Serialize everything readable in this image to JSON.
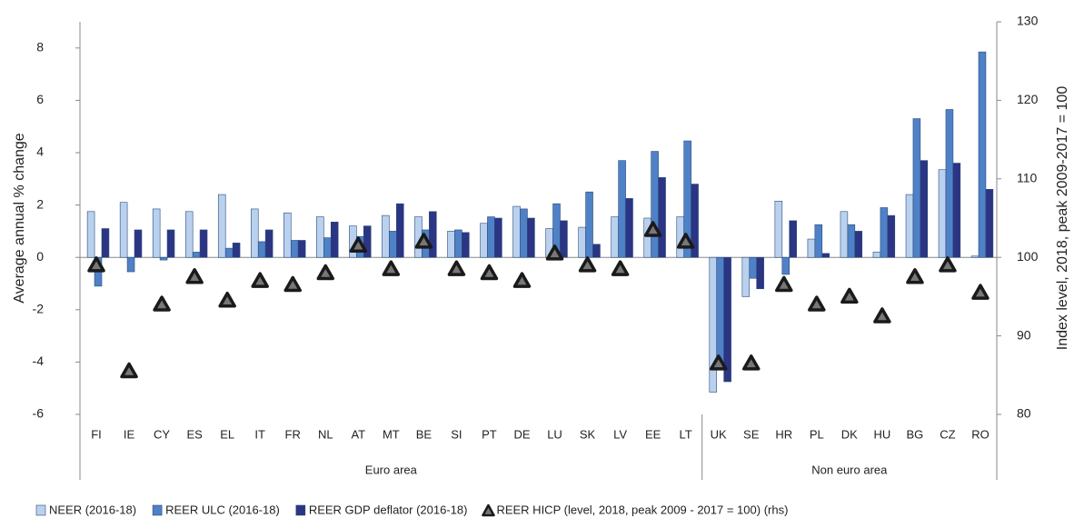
{
  "chart_data": {
    "type": "bar",
    "categories": [
      "FI",
      "IE",
      "CY",
      "ES",
      "EL",
      "IT",
      "FR",
      "NL",
      "AT",
      "MT",
      "BE",
      "SI",
      "PT",
      "DE",
      "LU",
      "SK",
      "LV",
      "EE",
      "LT",
      "UK",
      "SE",
      "HR",
      "PL",
      "DK",
      "HU",
      "BG",
      "CZ",
      "RO"
    ],
    "category_groups": [
      "Euro area",
      "Euro area",
      "Euro area",
      "Euro area",
      "Euro area",
      "Euro area",
      "Euro area",
      "Euro area",
      "Euro area",
      "Euro area",
      "Euro area",
      "Euro area",
      "Euro area",
      "Euro area",
      "Euro area",
      "Euro area",
      "Euro area",
      "Euro area",
      "Euro area",
      "Non euro area",
      "Non euro area",
      "Non euro area",
      "Non euro area",
      "Non euro area",
      "Non euro area",
      "Non euro area",
      "Non euro area",
      "Non euro area"
    ],
    "y_label": "Average  annual  % change",
    "y2_label": "Index level,   2018, peak 2009-2017 = 100",
    "ylim": [
      -6,
      9
    ],
    "yticks": [
      -6,
      -4,
      -2,
      0,
      2,
      4,
      6,
      8
    ],
    "y2lim": [
      80,
      130
    ],
    "y2ticks": [
      80,
      90,
      100,
      110,
      120,
      130
    ],
    "series": [
      {
        "name": "NEER (2016-18)",
        "color": "#b9d1ee",
        "values": [
          1.75,
          2.1,
          1.85,
          1.75,
          2.4,
          1.85,
          1.7,
          1.55,
          1.2,
          1.6,
          1.55,
          1.0,
          1.3,
          1.95,
          1.1,
          1.15,
          1.55,
          1.5,
          1.55,
          -5.15,
          -1.5,
          2.15,
          0.7,
          1.75,
          0.2,
          2.4,
          3.35,
          0.05
        ]
      },
      {
        "name": "REER ULC (2016-18)",
        "color": "#4f81c7",
        "values": [
          -1.1,
          -0.55,
          -0.1,
          0.2,
          0.35,
          0.6,
          0.65,
          0.75,
          0.8,
          1.0,
          1.05,
          1.05,
          1.55,
          1.85,
          2.05,
          2.5,
          3.7,
          4.05,
          4.45,
          -4.05,
          -0.8,
          -0.65,
          1.25,
          1.25,
          1.9,
          5.3,
          5.65,
          7.85
        ]
      },
      {
        "name": "REER GDP deflator (2016-18)",
        "color": "#2b3583",
        "values": [
          1.1,
          1.05,
          1.05,
          1.05,
          0.55,
          1.05,
          0.65,
          1.35,
          1.2,
          2.05,
          1.75,
          0.95,
          1.5,
          1.5,
          1.4,
          0.5,
          2.25,
          3.05,
          2.8,
          -4.75,
          -1.2,
          1.4,
          0.15,
          1.0,
          1.6,
          3.7,
          3.6,
          2.6
        ]
      },
      {
        "name": "REER HICP (level, 2018, peak 2009 - 2017 = 100) (rhs)",
        "color": "#1a1a1a",
        "type": "scatter",
        "axis": "y2",
        "values": [
          99,
          85.5,
          94,
          97.5,
          94.5,
          97,
          96.5,
          98,
          101.5,
          98.5,
          102,
          98.5,
          98,
          97,
          100.5,
          99,
          98.5,
          103.5,
          102,
          86.5,
          86.5,
          96.5,
          94,
          95,
          92.5,
          97.5,
          99,
          95.5
        ]
      }
    ]
  }
}
